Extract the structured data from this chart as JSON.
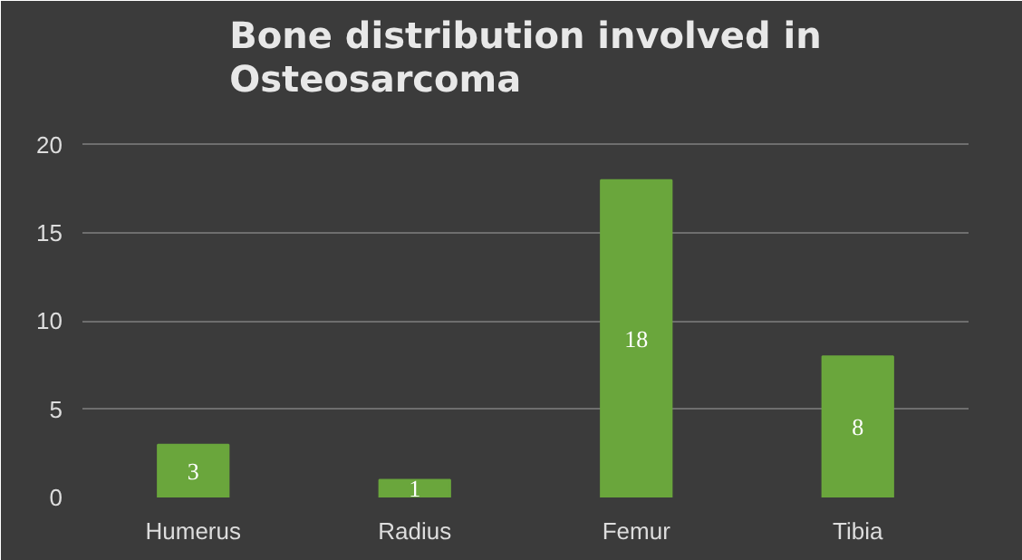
{
  "chart_data": {
    "type": "bar",
    "title": "Bone distribution involved in Osteosarcoma",
    "categories": [
      "Humerus",
      "Radius",
      "Femur",
      "Tibia"
    ],
    "values": [
      3,
      1,
      18,
      8
    ],
    "color": "#6aa63c",
    "ylim": [
      0,
      22
    ],
    "yticks": [
      0,
      5,
      10,
      15,
      20
    ],
    "grid": "y",
    "data_labels": true
  }
}
